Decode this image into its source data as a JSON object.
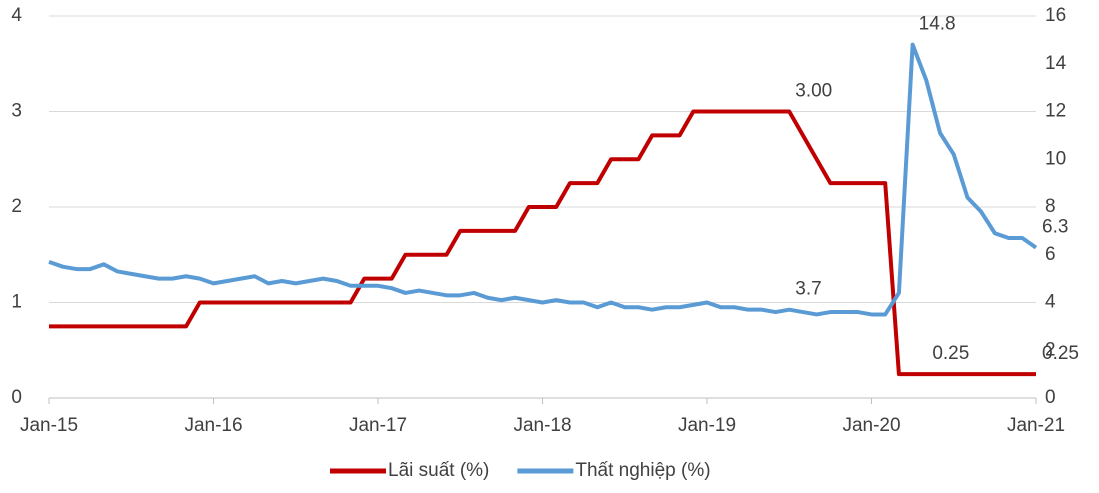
{
  "chart_data": {
    "type": "line",
    "categories": [
      "Jan-15",
      null,
      null,
      null,
      null,
      null,
      null,
      null,
      null,
      null,
      null,
      null,
      "Jan-16",
      null,
      null,
      null,
      null,
      null,
      null,
      null,
      null,
      null,
      null,
      null,
      "Jan-17",
      null,
      null,
      null,
      null,
      null,
      null,
      null,
      null,
      null,
      null,
      null,
      "Jan-18",
      null,
      null,
      null,
      null,
      null,
      null,
      null,
      null,
      null,
      null,
      null,
      "Jan-19",
      null,
      null,
      null,
      null,
      null,
      null,
      null,
      null,
      null,
      null,
      null,
      "Jan-20",
      null,
      null,
      null,
      null,
      null,
      null,
      null,
      null,
      null,
      null,
      null,
      "Jan-21"
    ],
    "series": [
      {
        "name": "Lãi suất (%)",
        "color": "#c00000",
        "values": [
          0.75,
          0.75,
          0.75,
          0.75,
          0.75,
          0.75,
          0.75,
          0.75,
          0.75,
          0.75,
          0.75,
          1,
          1,
          1,
          1,
          1,
          1,
          1,
          1,
          1,
          1,
          1,
          1,
          1.25,
          1.25,
          1.25,
          1.5,
          1.5,
          1.5,
          1.5,
          1.75,
          1.75,
          1.75,
          1.75,
          1.75,
          2,
          2,
          2,
          2.25,
          2.25,
          2.25,
          2.5,
          2.5,
          2.5,
          2.75,
          2.75,
          2.75,
          3,
          3,
          3,
          3,
          3,
          3,
          3,
          3,
          2.75,
          2.5,
          2.25,
          2.25,
          2.25,
          2.25,
          2.25,
          0.25,
          0.25,
          0.25,
          0.25,
          0.25,
          0.25,
          0.25,
          0.25,
          0.25,
          0.25,
          0.25
        ],
        "value_labels": [
          null,
          null,
          null,
          null,
          null,
          null,
          null,
          null,
          null,
          null,
          null,
          null,
          null,
          null,
          null,
          null,
          null,
          null,
          null,
          null,
          null,
          null,
          null,
          null,
          null,
          null,
          null,
          null,
          null,
          null,
          null,
          null,
          null,
          null,
          null,
          null,
          null,
          null,
          null,
          null,
          null,
          null,
          null,
          null,
          null,
          null,
          null,
          null,
          null,
          null,
          null,
          null,
          null,
          null,
          "3.00",
          null,
          null,
          null,
          null,
          null,
          null,
          null,
          null,
          null,
          "0.25",
          null,
          null,
          null,
          null,
          null,
          null,
          null,
          "0.25"
        ]
      },
      {
        "name": "Thất nghiệp (%)",
        "color": "#5b9bd5",
        "axis": "y2",
        "values": [
          5.7,
          5.5,
          5.4,
          5.4,
          5.6,
          5.3,
          5.2,
          5.1,
          5.0,
          5.0,
          5.1,
          5.0,
          4.8,
          4.9,
          5.0,
          5.1,
          4.8,
          4.9,
          4.8,
          4.9,
          5.0,
          4.9,
          4.7,
          4.7,
          4.7,
          4.6,
          4.4,
          4.5,
          4.4,
          4.3,
          4.3,
          4.4,
          4.2,
          4.1,
          4.2,
          4.1,
          4.0,
          4.1,
          4.0,
          4.0,
          3.8,
          4.0,
          3.8,
          3.8,
          3.7,
          3.8,
          3.8,
          3.9,
          4.0,
          3.8,
          3.8,
          3.7,
          3.7,
          3.6,
          3.7,
          3.6,
          3.5,
          3.6,
          3.6,
          3.6,
          3.5,
          3.5,
          4.4,
          14.8,
          13.3,
          11.1,
          10.2,
          8.4,
          7.8,
          6.9,
          6.7,
          6.7,
          6.3
        ],
        "value_labels": [
          null,
          null,
          null,
          null,
          null,
          null,
          null,
          null,
          null,
          null,
          null,
          null,
          null,
          null,
          null,
          null,
          null,
          null,
          null,
          null,
          null,
          null,
          null,
          null,
          null,
          null,
          null,
          null,
          null,
          null,
          null,
          null,
          null,
          null,
          null,
          null,
          null,
          null,
          null,
          null,
          null,
          null,
          null,
          null,
          null,
          null,
          null,
          null,
          null,
          null,
          null,
          null,
          null,
          null,
          "3.7",
          null,
          null,
          null,
          null,
          null,
          null,
          null,
          null,
          "14.8",
          null,
          null,
          null,
          null,
          null,
          null,
          null,
          null,
          "6.3"
        ]
      }
    ],
    "ylim": [
      0,
      4
    ],
    "yticks": [
      0,
      1,
      2,
      3,
      4
    ],
    "y2lim": [
      0,
      16
    ],
    "y2ticks": [
      0,
      2,
      4,
      6,
      8,
      10,
      12,
      14,
      16
    ],
    "grid": true,
    "legend": "bottom"
  }
}
